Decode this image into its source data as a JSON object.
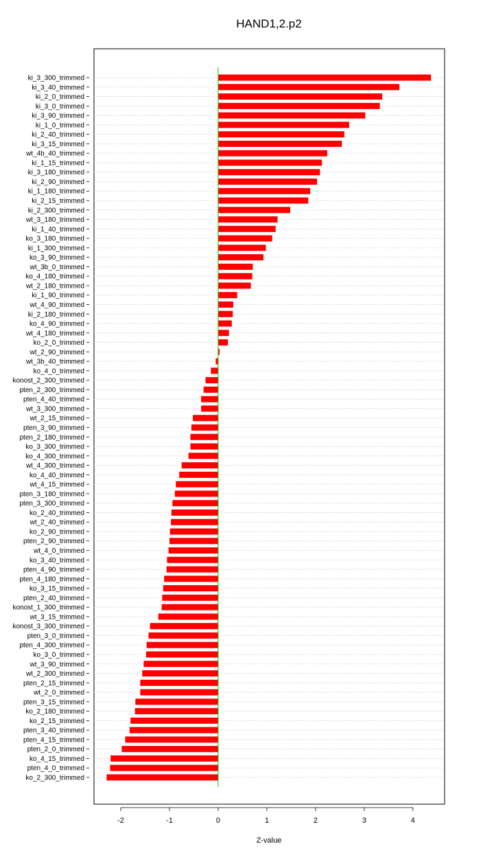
{
  "chart_data": {
    "type": "bar",
    "orientation": "horizontal",
    "title": "HAND1,2.p2",
    "xlabel": "Z-value",
    "ylabel": "",
    "xlim": [
      -2.55,
      4.65
    ],
    "x_ticks": [
      -2,
      -1,
      0,
      1,
      2,
      3,
      4
    ],
    "grid": "horizontal dotted lines at each bar",
    "bar_color": "#ff0000",
    "zero_line_color": "#00cc00",
    "categories": [
      "ki_3_300_trimmed",
      "ki_3_40_trimmed",
      "ki_2_0_trimmed",
      "ki_3_0_trimmed",
      "ki_3_90_trimmed",
      "ki_1_0_trimmed",
      "ki_2_40_trimmed",
      "ki_3_15_trimmed",
      "wt_4b_40_trimmed",
      "ki_1_15_trimmed",
      "ki_3_180_trimmed",
      "ki_2_90_trimmed",
      "ki_1_180_trimmed",
      "ki_2_15_trimmed",
      "ki_2_300_trimmed",
      "wt_3_180_trimmed",
      "ki_1_40_trimmed",
      "ko_3_180_trimmed",
      "ki_1_300_trimmed",
      "ko_3_90_trimmed",
      "wt_3b_0_trimmed",
      "ko_4_180_trimmed",
      "wt_2_180_trimmed",
      "ki_1_90_trimmed",
      "wt_4_90_trimmed",
      "ki_2_180_trimmed",
      "ko_4_90_trimmed",
      "wt_4_180_trimmed",
      "ko_2_0_trimmed",
      "wt_2_90_trimmed",
      "wt_3b_40_trimmed",
      "ko_4_0_trimmed",
      "konost_2_300_trimmed",
      "pten_2_300_trimmed",
      "pten_4_40_trimmed",
      "wt_3_300_trimmed",
      "wt_2_15_trimmed",
      "pten_3_90_trimmed",
      "pten_2_180_trimmed",
      "ko_3_300_trimmed",
      "ko_4_300_trimmed",
      "wt_4_300_trimmed",
      "ko_4_40_trimmed",
      "wt_4_15_trimmed",
      "pten_3_180_trimmed",
      "pten_3_300_trimmed",
      "ko_2_40_trimmed",
      "wt_2_40_trimmed",
      "ko_2_90_trimmed",
      "pten_2_90_trimmed",
      "wt_4_0_trimmed",
      "ko_3_40_trimmed",
      "pten_4_90_trimmed",
      "pten_4_180_trimmed",
      "ko_3_15_trimmed",
      "pten_2_40_trimmed",
      "konost_1_300_trimmed",
      "wt_3_15_trimmed",
      "konost_3_300_trimmed",
      "pten_3_0_trimmed",
      "pten_4_300_trimmed",
      "ko_3_0_trimmed",
      "wt_3_90_trimmed",
      "wt_2_300_trimmed",
      "pten_2_15_trimmed",
      "wt_2_0_trimmed",
      "pten_3_15_trimmed",
      "ko_2_180_trimmed",
      "ko_2_15_trimmed",
      "pten_3_40_trimmed",
      "pten_4_15_trimmed",
      "pten_2_0_trimmed",
      "ko_4_15_trimmed",
      "pten_4_0_trimmed",
      "ko_2_300_trimmed"
    ],
    "values": [
      4.37,
      3.72,
      3.37,
      3.32,
      3.02,
      2.69,
      2.59,
      2.54,
      2.24,
      2.13,
      2.09,
      2.03,
      1.89,
      1.85,
      1.48,
      1.22,
      1.18,
      1.11,
      0.98,
      0.93,
      0.71,
      0.7,
      0.67,
      0.39,
      0.31,
      0.3,
      0.28,
      0.22,
      0.2,
      0.03,
      -0.05,
      -0.15,
      -0.26,
      -0.3,
      -0.35,
      -0.35,
      -0.52,
      -0.55,
      -0.57,
      -0.57,
      -0.61,
      -0.75,
      -0.8,
      -0.87,
      -0.89,
      -0.94,
      -0.96,
      -0.97,
      -0.99,
      -1.0,
      -1.02,
      -1.05,
      -1.06,
      -1.11,
      -1.13,
      -1.15,
      -1.16,
      -1.23,
      -1.4,
      -1.43,
      -1.47,
      -1.48,
      -1.53,
      -1.56,
      -1.6,
      -1.6,
      -1.7,
      -1.71,
      -1.8,
      -1.82,
      -1.91,
      -1.98,
      -2.21,
      -2.22,
      -2.29
    ]
  }
}
